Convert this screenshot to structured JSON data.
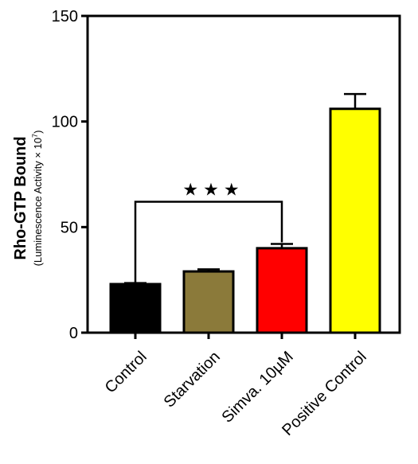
{
  "chart_data": {
    "type": "bar",
    "categories": [
      "Control",
      "Starvation",
      "Simva. 10µM",
      "Positive Control"
    ],
    "values": [
      23,
      29,
      40,
      106
    ],
    "errors": [
      0.5,
      1,
      2,
      7
    ],
    "colors": [
      "#000000",
      "#8b7a3a",
      "#ff0000",
      "#ffff00"
    ],
    "ylabel": "Rho-GTP Bound",
    "ylabel_sub": "(Luminescence Activity × 10",
    "ylabel_sub_sup": "7",
    "ylabel_sub_end": ")",
    "ylim": [
      0,
      150
    ],
    "yticks": [
      0,
      50,
      100,
      150
    ],
    "significance": {
      "from": 0,
      "to": 2,
      "y": 62,
      "label": "★★★"
    }
  }
}
